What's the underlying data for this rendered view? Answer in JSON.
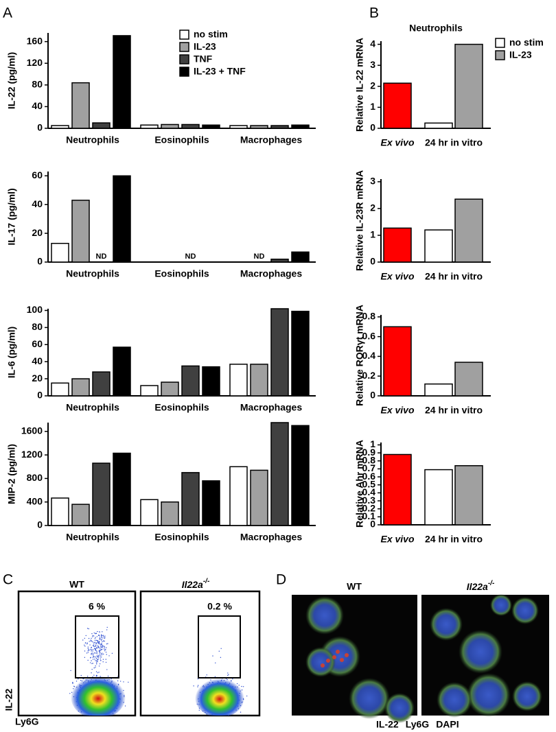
{
  "panels": [
    "A",
    "B",
    "C",
    "D"
  ],
  "chart_data": [
    {
      "type": "bar",
      "y_label": "IL-22 (pg/ml)",
      "categories": [
        "Neutrophils",
        "Eosinophils",
        "Macrophages"
      ],
      "category_colors": [
        "#e8201f",
        "#1a1ad0",
        "#1a9a1a"
      ],
      "series": [
        {
          "name": "no stim",
          "color": "#ffffff",
          "values": [
            5,
            6,
            5
          ]
        },
        {
          "name": "IL-23",
          "color": "#a0a0a0",
          "values": [
            84,
            7,
            5
          ]
        },
        {
          "name": "TNF",
          "color": "#404040",
          "values": [
            10,
            7,
            5
          ]
        },
        {
          "name": "IL-23 + TNF",
          "color": "#000000",
          "values": [
            171,
            6,
            6
          ]
        }
      ],
      "ylim": [
        0,
        176
      ],
      "yticks": [
        0,
        40,
        80,
        120,
        160
      ],
      "legend": "upper right"
    },
    {
      "type": "bar",
      "y_label": "IL-17 (pg/ml)",
      "categories": [
        "Neutrophils",
        "Eosinophils",
        "Macrophages"
      ],
      "category_colors": [
        "#e8201f",
        "#1a1ad0",
        "#1a9a1a"
      ],
      "series": [
        {
          "color": "#ffffff",
          "values": [
            13,
            null,
            null
          ]
        },
        {
          "color": "#a0a0a0",
          "values": [
            43,
            null,
            null
          ]
        },
        {
          "color": "#404040",
          "values": [
            null,
            null,
            2
          ]
        },
        {
          "color": "#000000",
          "values": [
            60,
            null,
            7
          ]
        }
      ],
      "annotations": [
        {
          "text": "ND",
          "category": 0,
          "series": 2
        },
        {
          "text": "ND",
          "category": 1,
          "series": 2
        },
        {
          "text": "ND",
          "category": 2,
          "series": 1
        }
      ],
      "ylim": [
        0,
        63
      ],
      "yticks": [
        0,
        20,
        40,
        60
      ]
    },
    {
      "type": "bar",
      "y_label": "IL-6 (pg/ml)",
      "categories": [
        "Neutrophils",
        "Eosinophils",
        "Macrophages"
      ],
      "category_colors": [
        "#e8201f",
        "#1a1ad0",
        "#1a9a1a"
      ],
      "series": [
        {
          "color": "#ffffff",
          "values": [
            15,
            12,
            37
          ]
        },
        {
          "color": "#a0a0a0",
          "values": [
            20,
            16,
            37
          ]
        },
        {
          "color": "#404040",
          "values": [
            28,
            35,
            102
          ]
        },
        {
          "color": "#000000",
          "values": [
            57,
            34,
            99
          ]
        }
      ],
      "ylim": [
        0,
        102
      ],
      "yticks": [
        0,
        20,
        40,
        60,
        80,
        100
      ]
    },
    {
      "type": "bar",
      "y_label": "MIP-2 (pg/ml)",
      "categories": [
        "Neutrophils",
        "Eosinophils",
        "Macrophages"
      ],
      "category_colors": [
        "#e8201f",
        "#1a1ad0",
        "#1a9a1a"
      ],
      "series": [
        {
          "color": "#ffffff",
          "values": [
            467,
            440,
            1000
          ]
        },
        {
          "color": "#a0a0a0",
          "values": [
            360,
            400,
            940
          ]
        },
        {
          "color": "#404040",
          "values": [
            1060,
            900,
            1750
          ]
        },
        {
          "color": "#000000",
          "values": [
            1230,
            760,
            1700
          ]
        }
      ],
      "ylim": [
        0,
        1750
      ],
      "yticks": [
        0,
        400,
        800,
        1200,
        1600
      ]
    },
    {
      "type": "bar",
      "title": "Neutrophils",
      "title_color": "#e8201f",
      "y_label": "Relative IL-22 mRNA",
      "categories": [
        "Ex vivo",
        "24 hr in vitro"
      ],
      "category_colors": [
        "#e8201f",
        "#000000"
      ],
      "series": [
        {
          "color": "#ff0000",
          "values": [
            2.15,
            null
          ]
        },
        {
          "name": "no stim",
          "color": "#ffffff",
          "values": [
            null,
            0.25
          ]
        },
        {
          "name": "IL-23",
          "color": "#a0a0a0",
          "values": [
            null,
            4.0
          ]
        }
      ],
      "ylim": [
        0,
        4.15
      ],
      "yticks": [
        0,
        1,
        2,
        3,
        4
      ],
      "legend": "outside right"
    },
    {
      "type": "bar",
      "y_label": "Relative IL-23R mRNA",
      "categories": [
        "Ex vivo",
        "24 hr in vitro"
      ],
      "category_colors": [
        "#e8201f",
        "#000000"
      ],
      "series": [
        {
          "color": "#ff0000",
          "values": [
            1.27,
            null
          ]
        },
        {
          "color": "#ffffff",
          "values": [
            null,
            1.2
          ]
        },
        {
          "color": "#a0a0a0",
          "values": [
            null,
            2.35
          ]
        }
      ],
      "ylim": [
        0,
        3.1
      ],
      "yticks": [
        0,
        1,
        2,
        3
      ]
    },
    {
      "type": "bar",
      "y_label": "Relative RORγt mRNA",
      "categories": [
        "Ex vivo",
        "24 hr in vitro"
      ],
      "category_colors": [
        "#e8201f",
        "#000000"
      ],
      "series": [
        {
          "color": "#ff0000",
          "values": [
            0.7,
            null
          ]
        },
        {
          "color": "#ffffff",
          "values": [
            null,
            0.12
          ]
        },
        {
          "color": "#a0a0a0",
          "values": [
            null,
            0.34
          ]
        }
      ],
      "ylim": [
        0,
        0.82
      ],
      "yticks": [
        0,
        0.2,
        0.4,
        0.6,
        0.8
      ]
    },
    {
      "type": "bar",
      "y_label": "Relative Ahr mRNA",
      "categories": [
        "Ex vivo",
        "24 hr in vitro"
      ],
      "category_colors": [
        "#e8201f",
        "#000000"
      ],
      "series": [
        {
          "color": "#ff0000",
          "values": [
            0.88,
            null
          ]
        },
        {
          "color": "#ffffff",
          "values": [
            null,
            0.69
          ]
        },
        {
          "color": "#a0a0a0",
          "values": [
            null,
            0.74
          ]
        }
      ],
      "ylim": [
        0,
        1.03
      ],
      "yticks": [
        0,
        0.1,
        0.2,
        0.3,
        0.4,
        0.5,
        0.6,
        0.7,
        0.8,
        0.9,
        1
      ]
    }
  ],
  "flow": {
    "columns": [
      {
        "name": "WT"
      },
      {
        "name": "Il22a",
        "superscript": "-/-"
      }
    ],
    "gates": [
      "6 %",
      "0.2 %"
    ],
    "y_label": "IL-22",
    "x_label": "Ly6G"
  },
  "microscopy": {
    "columns": [
      {
        "name": "WT"
      },
      {
        "name": "Il22a",
        "superscript": "-/-"
      }
    ],
    "stains": [
      {
        "name": "IL-22",
        "color": "#e8201f"
      },
      {
        "name": "Ly6G",
        "color": "#1a9a1a"
      },
      {
        "name": "DAPI",
        "color": "#1a1ad0"
      }
    ]
  }
}
